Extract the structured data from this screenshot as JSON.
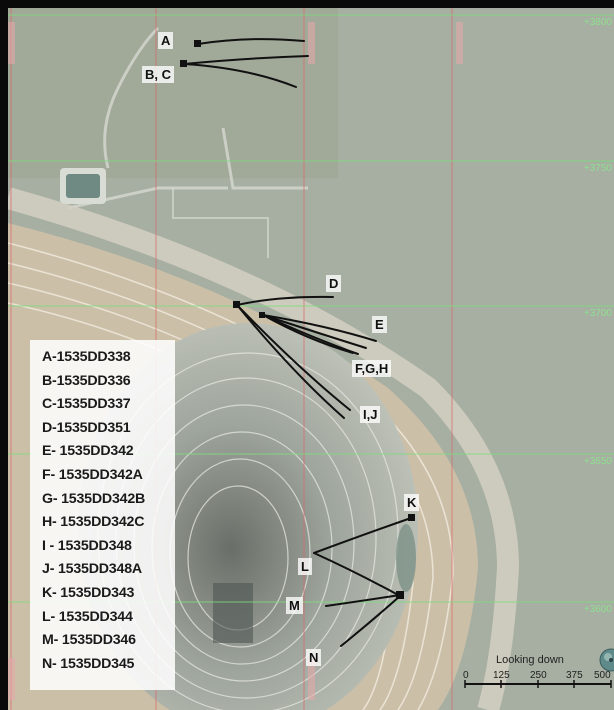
{
  "view": {
    "orientation": "Looking down"
  },
  "grid": {
    "northing_labels": [
      "+3800",
      "+3750",
      "+3700",
      "+3650",
      "+3600"
    ]
  },
  "scale_bar": {
    "ticks": [
      "0",
      "125",
      "250",
      "375",
      "500"
    ]
  },
  "drillhole_markers": [
    {
      "id": "A",
      "label": "A"
    },
    {
      "id": "BC",
      "label": "B, C"
    },
    {
      "id": "D",
      "label": "D"
    },
    {
      "id": "E",
      "label": "E"
    },
    {
      "id": "FGH",
      "label": "F,G,H"
    },
    {
      "id": "IJ",
      "label": "I,J"
    },
    {
      "id": "K",
      "label": "K"
    },
    {
      "id": "L",
      "label": "L"
    },
    {
      "id": "M",
      "label": "M"
    },
    {
      "id": "N",
      "label": "N"
    }
  ],
  "legend": {
    "items": [
      "A-1535DD338",
      "B-1535DD336",
      "C-1535DD337",
      "D-1535DD351",
      "E- 1535DD342",
      "F- 1535DD342A",
      "G- 1535DD342B",
      "H- 1535DD342C",
      "I - 1535DD348",
      "J- 1535DD348A",
      "K- 1535DD343",
      "L- 1535DD344",
      "M- 1535DD346",
      "N- 1535DD345"
    ]
  },
  "colors": {
    "easting_gridline": "#d86a6a",
    "northing_gridline": "#7fdc7f",
    "drillhole_trace": "#111111",
    "pit_benches": "#c9b9a0"
  }
}
